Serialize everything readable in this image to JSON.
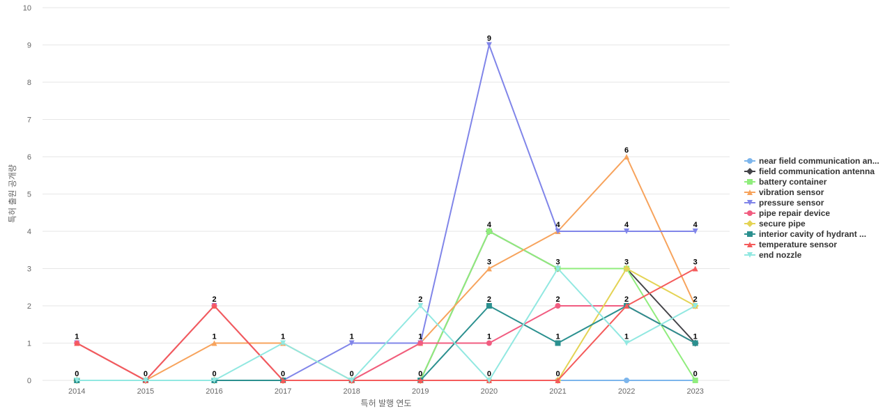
{
  "chart_data": {
    "type": "line",
    "xlabel": "특허 발행 연도",
    "ylabel": "특허 출원 공개량",
    "ylim": [
      0,
      10
    ],
    "grid": true,
    "legend_position": "right",
    "categories": [
      "2014",
      "2015",
      "2016",
      "2017",
      "2018",
      "2019",
      "2020",
      "2021",
      "2022",
      "2023"
    ],
    "yticks": [
      "0",
      "1",
      "2",
      "3",
      "4",
      "5",
      "6",
      "7",
      "8",
      "9",
      "10"
    ],
    "series": [
      {
        "name": "near field communication an...",
        "color": "#7cb5ec",
        "marker": "circle",
        "values": [
          0,
          0,
          0,
          0,
          0,
          0,
          0,
          0,
          0,
          0
        ]
      },
      {
        "name": "field communication antenna",
        "color": "#434348",
        "marker": "diamond",
        "values": [
          0,
          0,
          0,
          0,
          0,
          0,
          4,
          3,
          3,
          1
        ]
      },
      {
        "name": "battery container",
        "color": "#90ed7d",
        "marker": "square",
        "values": [
          0,
          0,
          0,
          0,
          0,
          0,
          4,
          3,
          3,
          0
        ]
      },
      {
        "name": "vibration sensor",
        "color": "#f7a35c",
        "marker": "triangle",
        "values": [
          1,
          0,
          1,
          1,
          0,
          1,
          3,
          4,
          6,
          2
        ]
      },
      {
        "name": "pressure sensor",
        "color": "#8085e9",
        "marker": "triangle-down",
        "values": [
          1,
          0,
          2,
          0,
          1,
          1,
          9,
          4,
          4,
          4
        ]
      },
      {
        "name": "pipe repair device",
        "color": "#f15c80",
        "marker": "circle",
        "values": [
          1,
          0,
          2,
          0,
          0,
          1,
          1,
          2,
          2,
          1
        ]
      },
      {
        "name": "secure pipe",
        "color": "#e4d354",
        "marker": "diamond",
        "values": [
          0,
          0,
          0,
          0,
          0,
          0,
          0,
          0,
          3,
          2
        ]
      },
      {
        "name": "interior cavity of hydrant ...",
        "color": "#2b908f",
        "marker": "square",
        "values": [
          0,
          0,
          0,
          0,
          0,
          0,
          2,
          1,
          2,
          1
        ]
      },
      {
        "name": "temperature sensor",
        "color": "#f45b5b",
        "marker": "triangle",
        "values": [
          1,
          0,
          2,
          0,
          0,
          0,
          0,
          0,
          2,
          3
        ]
      },
      {
        "name": "end nozzle",
        "color": "#91e8e1",
        "marker": "triangle-down",
        "values": [
          0,
          0,
          0,
          1,
          0,
          2,
          0,
          3,
          1,
          2
        ]
      }
    ],
    "data_labels": [
      {
        "x": "2014",
        "value": 1
      },
      {
        "x": "2014",
        "value": 0
      },
      {
        "x": "2015",
        "value": 0
      },
      {
        "x": "2016",
        "value": 2
      },
      {
        "x": "2016",
        "value": 1
      },
      {
        "x": "2016",
        "value": 0
      },
      {
        "x": "2017",
        "value": 1
      },
      {
        "x": "2017",
        "value": 0
      },
      {
        "x": "2018",
        "value": 1
      },
      {
        "x": "2018",
        "value": 0
      },
      {
        "x": "2019",
        "value": 2
      },
      {
        "x": "2019",
        "value": 1
      },
      {
        "x": "2019",
        "value": 0
      },
      {
        "x": "2020",
        "value": 9
      },
      {
        "x": "2020",
        "value": 4
      },
      {
        "x": "2020",
        "value": 3
      },
      {
        "x": "2020",
        "value": 2
      },
      {
        "x": "2020",
        "value": 1
      },
      {
        "x": "2020",
        "value": 0
      },
      {
        "x": "2021",
        "value": 4
      },
      {
        "x": "2021",
        "value": 3
      },
      {
        "x": "2021",
        "value": 2
      },
      {
        "x": "2021",
        "value": 1
      },
      {
        "x": "2021",
        "value": 0
      },
      {
        "x": "2022",
        "value": 6
      },
      {
        "x": "2022",
        "value": 4
      },
      {
        "x": "2022",
        "value": 3
      },
      {
        "x": "2022",
        "value": 2
      },
      {
        "x": "2022",
        "value": 1
      },
      {
        "x": "2023",
        "value": 4
      },
      {
        "x": "2023",
        "value": 3
      },
      {
        "x": "2023",
        "value": 2
      },
      {
        "x": "2023",
        "value": 1
      },
      {
        "x": "2023",
        "value": 0
      }
    ]
  }
}
